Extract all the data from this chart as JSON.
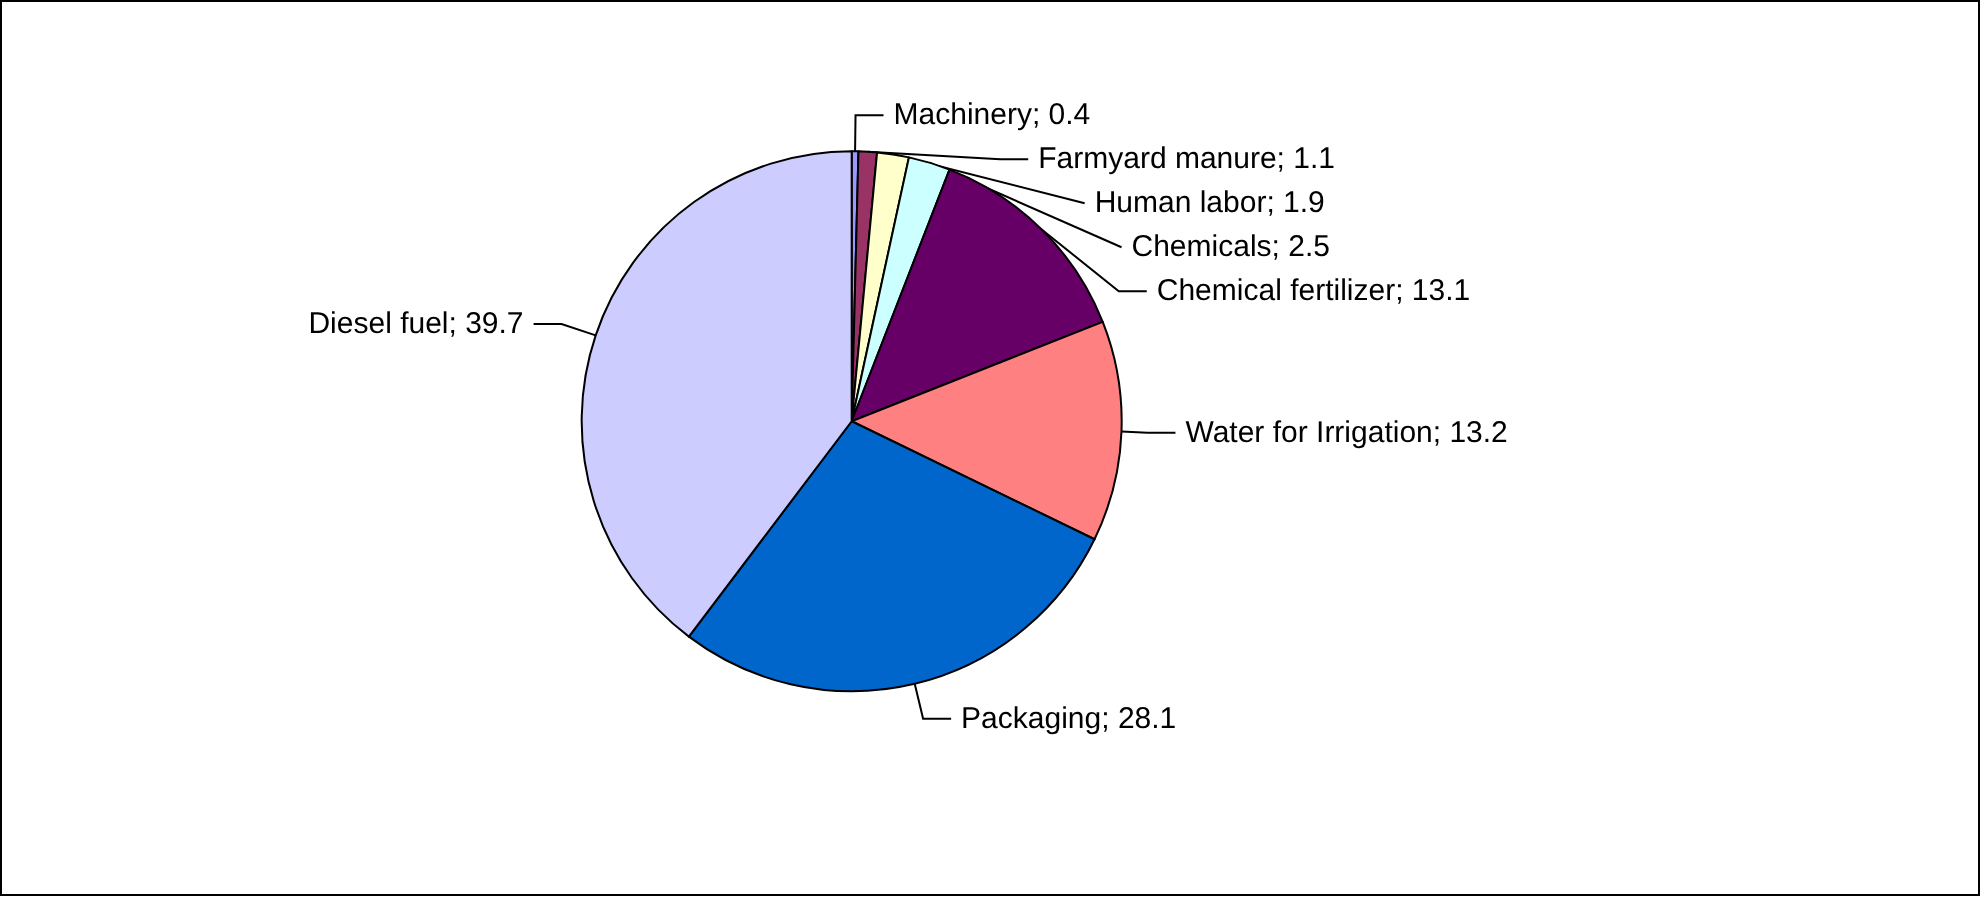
{
  "chart_data": {
    "type": "pie",
    "categories": [
      "Machinery",
      "Farmyard manure",
      "Human labor",
      "Chemicals",
      "Chemical fertilizer",
      "Water for Irrigation",
      "Packaging",
      "Diesel fuel"
    ],
    "values": [
      0.4,
      1.1,
      1.9,
      2.5,
      13.1,
      13.2,
      28.1,
      39.7
    ],
    "colors": [
      "#9999ff",
      "#993366",
      "#ffffcc",
      "#ccffff",
      "#660066",
      "#ff8080",
      "#0066cc",
      "#ccccff"
    ],
    "value_labels": [
      "; 0.4",
      "; 1.1",
      "; 1.9",
      "; 2.5",
      "; 13.1",
      "; 13.2",
      "; 28.1",
      "; 39.7"
    ],
    "legend": false
  }
}
